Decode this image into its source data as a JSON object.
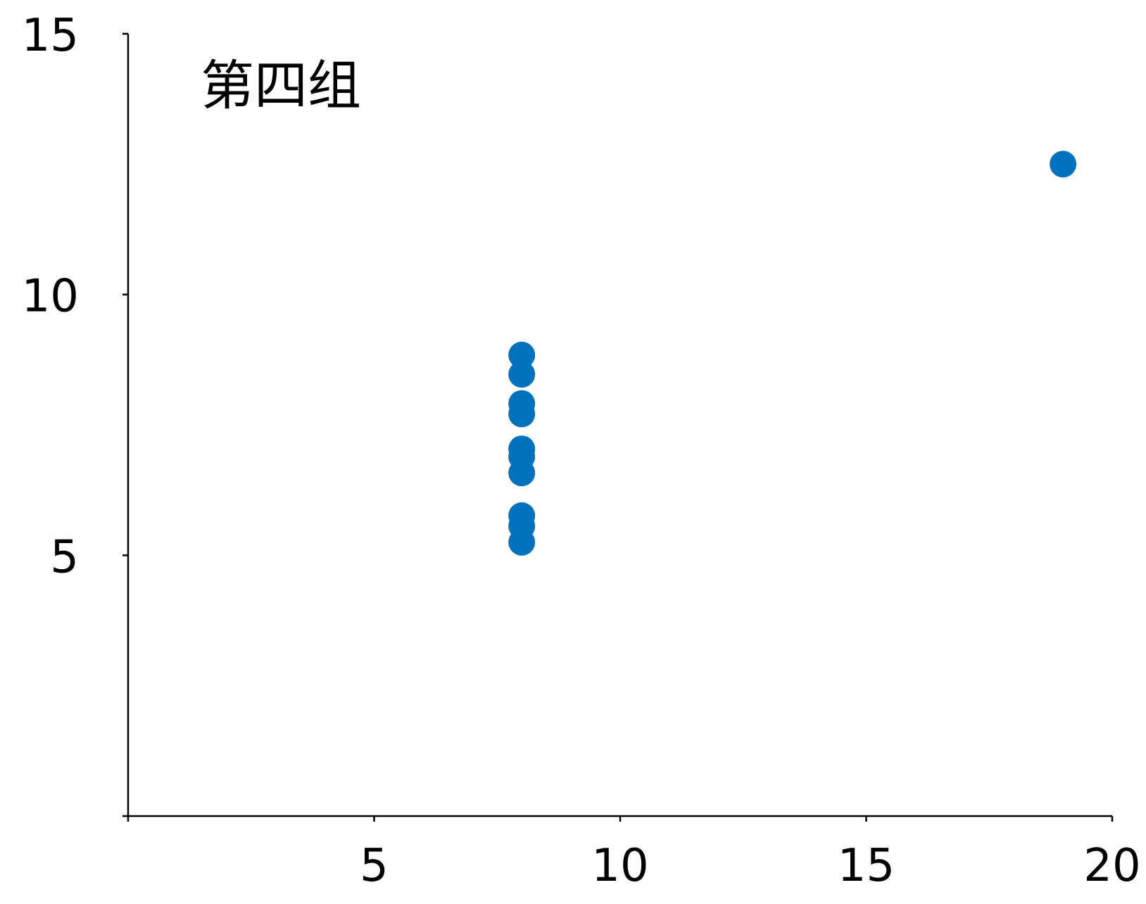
{
  "chart_data": {
    "type": "scatter",
    "annotation": "第四组",
    "xlabel": "",
    "ylabel": "",
    "xlim": [
      0,
      20
    ],
    "ylim": [
      0,
      15
    ],
    "x_ticks": [
      5,
      10,
      15,
      20
    ],
    "x_tick_labels": [
      "5",
      "10",
      "15",
      "20"
    ],
    "y_ticks": [
      5,
      10,
      15
    ],
    "y_tick_labels": [
      "5",
      "10",
      "15"
    ],
    "grid": false,
    "series": [
      {
        "color": "#0072BD",
        "x": [
          8,
          8,
          8,
          8,
          8,
          8,
          8,
          19,
          8,
          8,
          8
        ],
        "y": [
          6.58,
          5.76,
          7.71,
          8.84,
          8.47,
          7.04,
          5.25,
          12.5,
          5.56,
          7.91,
          6.89
        ]
      }
    ]
  }
}
